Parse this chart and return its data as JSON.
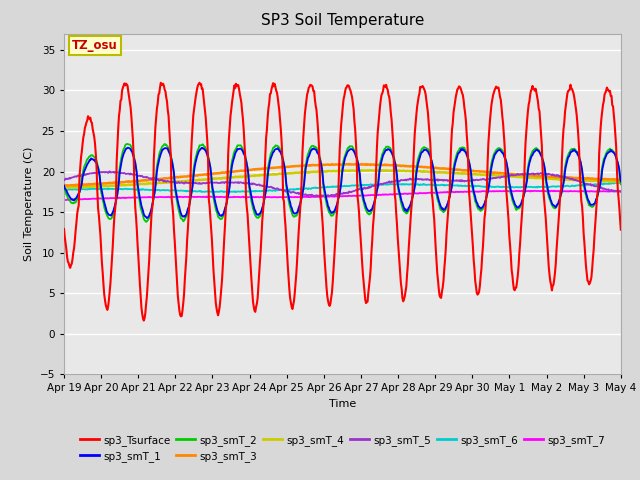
{
  "title": "SP3 Soil Temperature",
  "xlabel": "Time",
  "ylabel": "Soil Temperature (C)",
  "ylim": [
    -5,
    37
  ],
  "yticks": [
    -5,
    0,
    5,
    10,
    15,
    20,
    25,
    30,
    35
  ],
  "x_tick_labels": [
    "Apr 19",
    "Apr 20",
    "Apr 21",
    "Apr 22",
    "Apr 23",
    "Apr 24",
    "Apr 25",
    "Apr 26",
    "Apr 27",
    "Apr 28",
    "Apr 29",
    "Apr 30",
    "May 1",
    "May 2",
    "May 3",
    "May 4"
  ],
  "annotation_text": "TZ_osu",
  "annotation_color": "#cc0000",
  "annotation_bg": "#ffffcc",
  "annotation_border": "#bbbb00",
  "fig_bg": "#d8d8d8",
  "plot_bg": "#e8e8e8",
  "grid_color": "white",
  "series_colors": {
    "sp3_Tsurface": "#ff0000",
    "sp3_smT_1": "#0000ff",
    "sp3_smT_2": "#00cc00",
    "sp3_smT_3": "#ff8800",
    "sp3_smT_4": "#cccc00",
    "sp3_smT_5": "#9933cc",
    "sp3_smT_6": "#00cccc",
    "sp3_smT_7": "#ff00ff"
  }
}
